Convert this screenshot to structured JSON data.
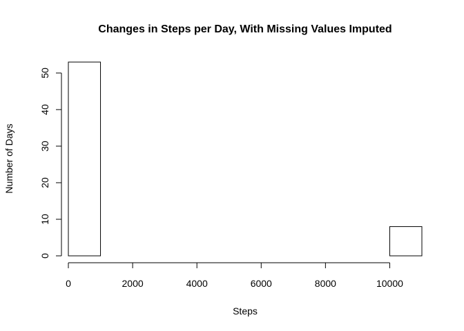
{
  "chart_data": {
    "type": "bar",
    "subtype": "histogram",
    "title": "Changes in Steps per Day, With Missing Values Imputed",
    "xlabel": "Steps",
    "ylabel": "Number of Days",
    "bins": [
      {
        "start": 0,
        "end": 1000,
        "count": 53
      },
      {
        "start": 1000,
        "end": 2000,
        "count": 0
      },
      {
        "start": 2000,
        "end": 3000,
        "count": 0
      },
      {
        "start": 3000,
        "end": 4000,
        "count": 0
      },
      {
        "start": 4000,
        "end": 5000,
        "count": 0
      },
      {
        "start": 5000,
        "end": 6000,
        "count": 0
      },
      {
        "start": 6000,
        "end": 7000,
        "count": 0
      },
      {
        "start": 7000,
        "end": 8000,
        "count": 0
      },
      {
        "start": 8000,
        "end": 9000,
        "count": 0
      },
      {
        "start": 9000,
        "end": 10000,
        "count": 0
      },
      {
        "start": 10000,
        "end": 11000,
        "count": 8
      }
    ],
    "xlim": [
      0,
      11000
    ],
    "ylim": [
      0,
      53
    ],
    "xticks": [
      0,
      2000,
      4000,
      6000,
      8000,
      10000
    ],
    "xtick_labels": [
      "0",
      "2000",
      "4000",
      "6000",
      "8000",
      "10000"
    ],
    "yticks": [
      0,
      10,
      20,
      30,
      40,
      50
    ],
    "ytick_labels": [
      "0",
      "10",
      "20",
      "30",
      "40",
      "50"
    ],
    "bar_fill": "#ffffff",
    "bar_stroke": "#000000",
    "grid": false,
    "legend": "none"
  }
}
